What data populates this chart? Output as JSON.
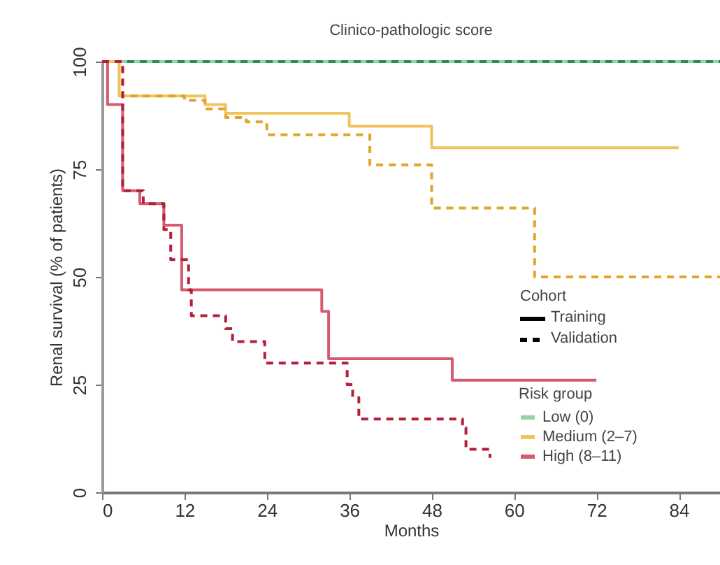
{
  "chart_data": {
    "type": "step",
    "title": "Clinico-pathologic score",
    "xlabel": "Months",
    "ylabel": "Renal survival (% of patients)",
    "xlim": [
      0,
      90
    ],
    "ylim": [
      0,
      100
    ],
    "xticks": [
      0,
      12,
      24,
      36,
      48,
      60,
      72,
      84
    ],
    "yticks": [
      0,
      25,
      50,
      75,
      100
    ],
    "grid": false,
    "legend": "bottom right",
    "legend_title": "Risk group",
    "annotations": [
      "Cohort",
      "Training",
      "Validation"
    ],
    "series": [
      {
        "name": "Low (0)",
        "line_style": "solid",
        "color": "#8fd3a6",
        "x": [
          0,
          90
        ],
        "values": [
          100,
          100
        ]
      },
      {
        "line_style": "dashed",
        "color": "#2e8b57",
        "x": [
          0,
          90
        ],
        "values": [
          100,
          100
        ]
      },
      {
        "name": "Medium (2–7)",
        "line_style": "solid",
        "color": "#efc35e",
        "x": [
          0,
          2.5,
          15,
          18,
          36,
          48,
          84
        ],
        "values": [
          100,
          92,
          90,
          88,
          85,
          80,
          80
        ]
      },
      {
        "line_style": "dashed",
        "color": "#e0a52a",
        "x": [
          0,
          3,
          12,
          15,
          18,
          21,
          24,
          39,
          48,
          63,
          90
        ],
        "values": [
          100,
          92,
          91,
          89,
          87,
          86,
          83,
          76,
          66,
          50,
          50
        ]
      },
      {
        "name": "High (8–11)",
        "line_style": "solid",
        "color": "#d65a70",
        "x": [
          0,
          0.8,
          3,
          5.5,
          9,
          11.6,
          32,
          33,
          51,
          72
        ],
        "values": [
          100,
          90,
          70,
          67,
          62,
          47,
          42,
          31,
          26,
          26
        ]
      },
      {
        "line_style": "dashed",
        "color": "#b3203a",
        "x": [
          0,
          3,
          6,
          9,
          10,
          12.6,
          13,
          18,
          19,
          23.7,
          35.7,
          36.5,
          37.4,
          52.5,
          53,
          56.5
        ],
        "values": [
          100,
          70,
          67,
          61,
          54,
          47,
          41,
          38,
          35,
          30,
          25,
          22,
          17,
          15,
          10,
          8
        ]
      }
    ]
  }
}
